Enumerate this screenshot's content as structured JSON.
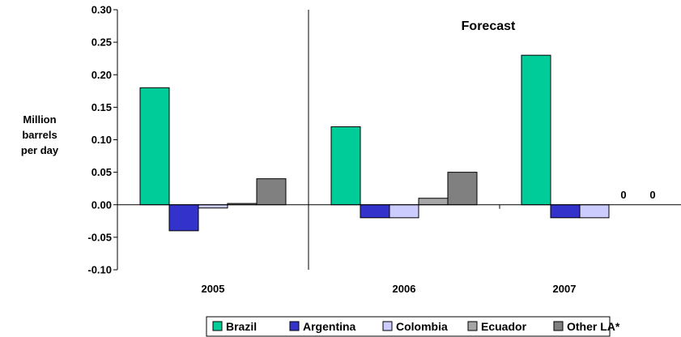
{
  "chart_data": {
    "type": "bar",
    "ylabel_lines": [
      "Million",
      "barrels",
      "per day"
    ],
    "annotation": "Forecast",
    "categories": [
      "2005",
      "2006",
      "2007"
    ],
    "ylim": [
      -0.1,
      0.3
    ],
    "yticks": [
      0.3,
      0.25,
      0.2,
      0.15,
      0.1,
      0.05,
      0.0,
      -0.05,
      -0.1
    ],
    "ytick_labels": [
      "0.30",
      "0.25",
      "0.20",
      "0.15",
      "0.10",
      "0.05",
      "0.00",
      "-0.05",
      "-0.10"
    ],
    "grid": false,
    "legend_position": "bottom",
    "series": [
      {
        "name": "Brazil",
        "color": "#00cc99",
        "values": [
          0.18,
          0.12,
          0.23
        ]
      },
      {
        "name": "Argentina",
        "color": "#3333cc",
        "values": [
          -0.04,
          -0.02,
          -0.02
        ]
      },
      {
        "name": "Colombia",
        "color": "#ccccff",
        "values": [
          -0.005,
          -0.02,
          -0.02
        ]
      },
      {
        "name": "Ecuador",
        "color": "#a6a6a6",
        "values": [
          0.002,
          0.01,
          0
        ]
      },
      {
        "name": "Other LA*",
        "color": "#808080",
        "values": [
          0.04,
          0.05,
          0
        ]
      }
    ],
    "data_labels": [
      {
        "series": "Ecuador",
        "category": "2007",
        "text": "0"
      },
      {
        "series": "Other LA*",
        "category": "2007",
        "text": "0"
      }
    ]
  }
}
